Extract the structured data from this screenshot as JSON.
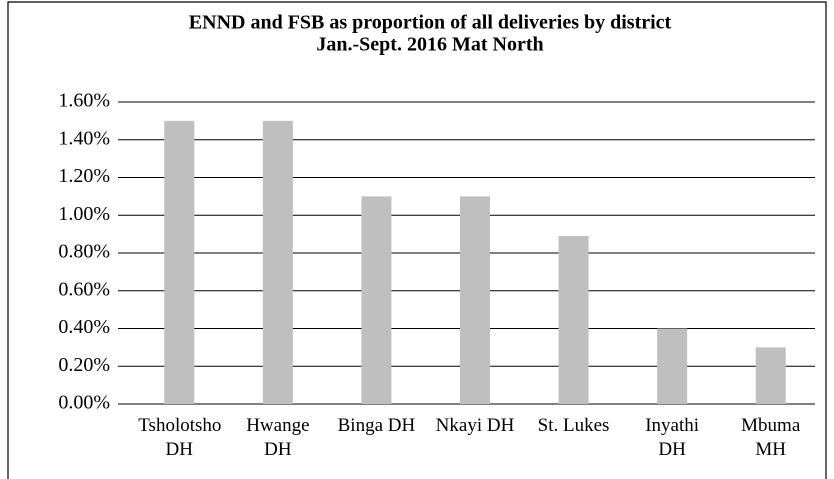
{
  "chart_data": {
    "type": "bar",
    "title": "ENND and FSB as proportion of all deliveries by district",
    "subtitle": "Jan.-Sept. 2016 Mat North",
    "categories": [
      "Tsholotsho DH",
      "Hwange DH",
      "Binga DH",
      "Nkayi DH",
      "St. Lukes",
      "Inyathi DH",
      "Mbuma MH"
    ],
    "values": [
      1.5,
      1.5,
      1.1,
      1.1,
      0.89,
      0.4,
      0.3
    ],
    "color": "#bfbfbf",
    "ylim": [
      0,
      1.6
    ],
    "yticks": [
      {
        "value": 0,
        "label": "0.00%"
      },
      {
        "value": 0.2,
        "label": "0.20%"
      },
      {
        "value": 0.4,
        "label": "0.40%"
      },
      {
        "value": 0.6,
        "label": "0.60%"
      },
      {
        "value": 0.8,
        "label": "0.80%"
      },
      {
        "value": 1.0,
        "label": "1.00%"
      },
      {
        "value": 1.2,
        "label": "1.20%"
      },
      {
        "value": 1.4,
        "label": "1.40%"
      },
      {
        "value": 1.6,
        "label": "1.60%"
      }
    ],
    "grid": true
  }
}
